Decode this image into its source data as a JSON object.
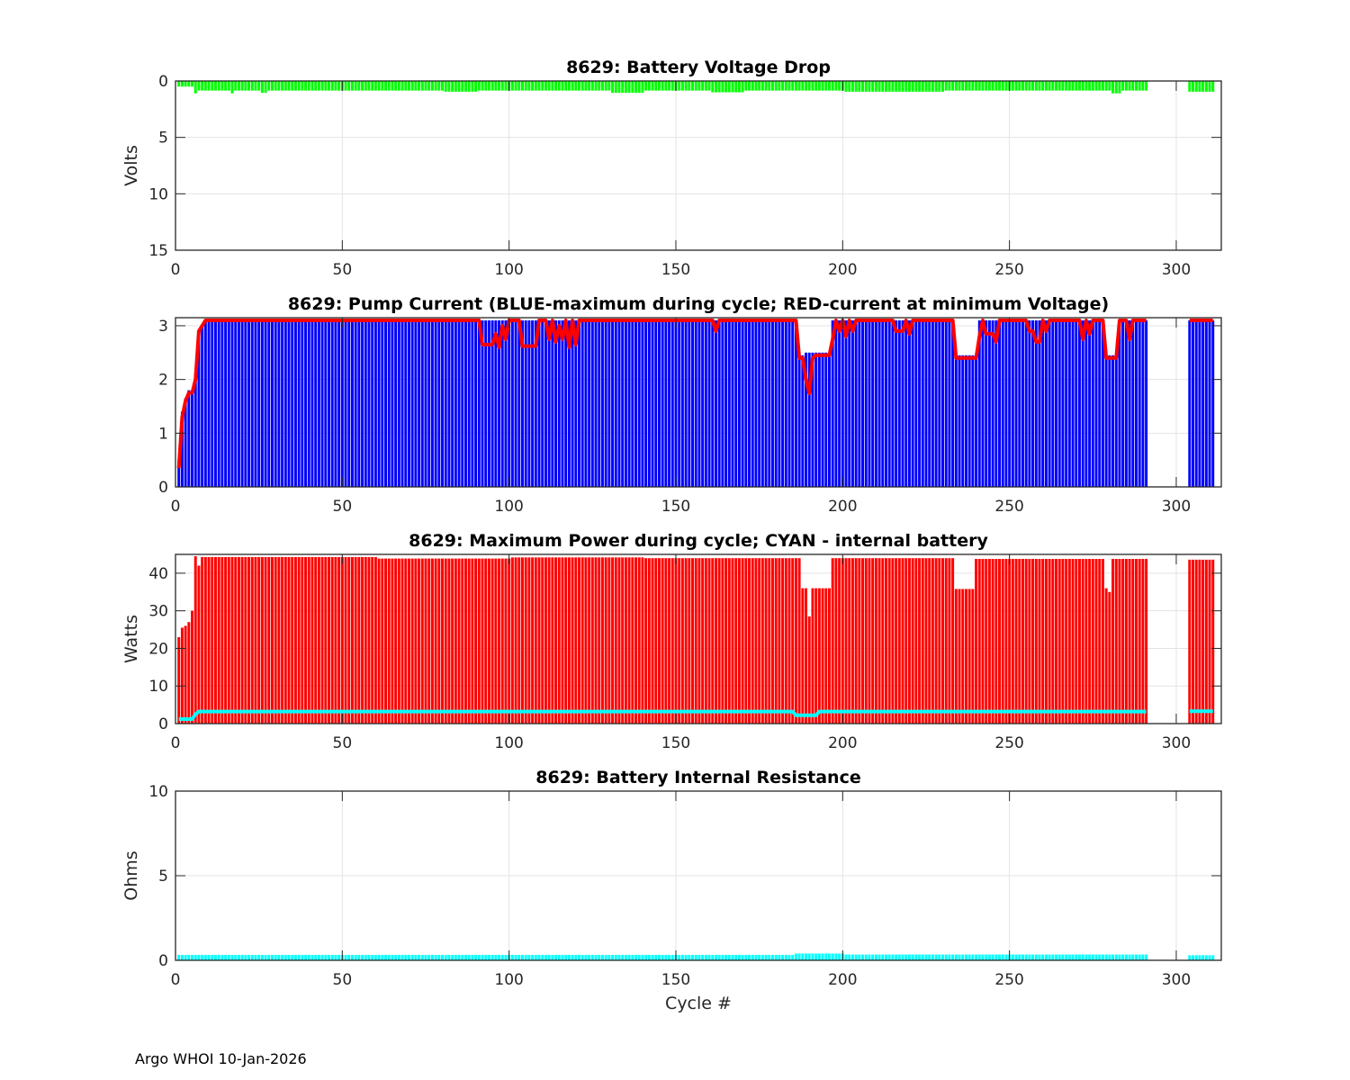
{
  "footer": "Argo WHOI 10-Jan-2026",
  "chart_data": [
    {
      "type": "bar",
      "title": "8629: Battery Voltage Drop",
      "xlabel": "",
      "ylabel": "Volts",
      "xlim": [
        0,
        313.5
      ],
      "ylim": [
        0,
        15
      ],
      "y_reversed": true,
      "xticks": [
        0,
        50,
        100,
        150,
        200,
        250,
        300
      ],
      "yticks": [
        0,
        5,
        10,
        15
      ],
      "grid": true,
      "series": [
        {
          "name": "voltage drop",
          "kind": "bar",
          "color": "#00ff00",
          "segments_note": "[first_cycle, last_cycle, value]",
          "segments": [
            [
              1,
              5,
              0.5
            ],
            [
              6,
              6,
              1.1
            ],
            [
              7,
              16,
              0.85
            ],
            [
              17,
              17,
              1.1
            ],
            [
              18,
              25,
              0.85
            ],
            [
              26,
              27,
              1.05
            ],
            [
              28,
              80,
              0.85
            ],
            [
              81,
              90,
              0.95
            ],
            [
              91,
              130,
              0.85
            ],
            [
              131,
              140,
              1.05
            ],
            [
              141,
              160,
              0.85
            ],
            [
              161,
              170,
              1.0
            ],
            [
              171,
              200,
              0.85
            ],
            [
              201,
              230,
              0.95
            ],
            [
              231,
              280,
              0.85
            ],
            [
              281,
              283,
              1.1
            ],
            [
              284,
              291,
              0.85
            ],
            [
              304,
              311,
              0.95
            ]
          ]
        }
      ]
    },
    {
      "type": "bar",
      "title": "8629: Pump Current (BLUE-maximum during cycle; RED-current at minimum Voltage)",
      "xlabel": "",
      "ylabel": "",
      "xlim": [
        0,
        313.5
      ],
      "ylim": [
        0,
        3.15
      ],
      "xticks": [
        0,
        50,
        100,
        150,
        200,
        250,
        300
      ],
      "yticks": [
        0,
        1,
        2,
        3
      ],
      "grid": true,
      "series": [
        {
          "name": "maximum during cycle",
          "kind": "bar",
          "color": "#0000ff",
          "segments": [
            [
              1,
              1,
              0.5
            ],
            [
              2,
              2,
              1.4
            ],
            [
              3,
              3,
              1.65
            ],
            [
              4,
              5,
              1.8
            ],
            [
              6,
              6,
              2.1
            ],
            [
              7,
              7,
              2.9
            ],
            [
              8,
              8,
              3.0
            ],
            [
              9,
              186,
              3.1
            ],
            [
              187,
              188,
              2.45
            ],
            [
              189,
              196,
              2.5
            ],
            [
              197,
              233,
              3.1
            ],
            [
              234,
              240,
              2.45
            ],
            [
              241,
              278,
              3.1
            ],
            [
              279,
              282,
              2.45
            ],
            [
              283,
              291,
              3.1
            ],
            [
              304,
              311,
              3.1
            ]
          ]
        },
        {
          "name": "current at minimum voltage",
          "kind": "line",
          "color": "#ff0000",
          "segments": [
            [
              1,
              1,
              0.35
            ],
            [
              2,
              2,
              1.3
            ],
            [
              3,
              3,
              1.6
            ],
            [
              4,
              5,
              1.75
            ],
            [
              6,
              6,
              2.0
            ],
            [
              7,
              7,
              2.9
            ],
            [
              8,
              8,
              3.0
            ],
            [
              9,
              91,
              3.1
            ],
            [
              92,
              95,
              2.65
            ],
            [
              96,
              96,
              2.85
            ],
            [
              97,
              97,
              2.6
            ],
            [
              98,
              98,
              3.0
            ],
            [
              99,
              99,
              2.75
            ],
            [
              100,
              103,
              3.1
            ],
            [
              104,
              108,
              2.62
            ],
            [
              109,
              111,
              3.1
            ],
            [
              112,
              112,
              2.75
            ],
            [
              113,
              113,
              3.1
            ],
            [
              114,
              114,
              2.7
            ],
            [
              115,
              115,
              3.0
            ],
            [
              116,
              116,
              2.75
            ],
            [
              117,
              117,
              3.1
            ],
            [
              118,
              118,
              2.6
            ],
            [
              119,
              119,
              3.1
            ],
            [
              120,
              120,
              2.65
            ],
            [
              121,
              161,
              3.1
            ],
            [
              162,
              162,
              2.9
            ],
            [
              163,
              186,
              3.1
            ],
            [
              187,
              188,
              2.4
            ],
            [
              189,
              189,
              2.0
            ],
            [
              190,
              190,
              1.74
            ],
            [
              191,
              191,
              2.4
            ],
            [
              192,
              196,
              2.45
            ],
            [
              197,
              197,
              2.75
            ],
            [
              198,
              198,
              3.1
            ],
            [
              199,
              199,
              2.9
            ],
            [
              200,
              200,
              3.1
            ],
            [
              201,
              201,
              2.8
            ],
            [
              202,
              202,
              3.1
            ],
            [
              203,
              203,
              2.9
            ],
            [
              204,
              215,
              3.1
            ],
            [
              216,
              218,
              2.9
            ],
            [
              219,
              219,
              3.1
            ],
            [
              220,
              220,
              2.85
            ],
            [
              221,
              233,
              3.1
            ],
            [
              234,
              240,
              2.4
            ],
            [
              241,
              241,
              2.8
            ],
            [
              242,
              242,
              3.1
            ],
            [
              243,
              245,
              2.85
            ],
            [
              246,
              246,
              2.7
            ],
            [
              247,
              255,
              3.1
            ],
            [
              256,
              257,
              2.9
            ],
            [
              258,
              259,
              2.7
            ],
            [
              260,
              260,
              3.1
            ],
            [
              261,
              261,
              2.9
            ],
            [
              262,
              271,
              3.1
            ],
            [
              272,
              272,
              2.75
            ],
            [
              273,
              273,
              3.1
            ],
            [
              274,
              274,
              2.85
            ],
            [
              275,
              278,
              3.1
            ],
            [
              279,
              282,
              2.4
            ],
            [
              283,
              285,
              3.1
            ],
            [
              286,
              286,
              2.75
            ],
            [
              287,
              291,
              3.1
            ],
            [
              304,
              311,
              3.1
            ]
          ]
        }
      ]
    },
    {
      "type": "bar",
      "title": "8629: Maximum Power during cycle; CYAN - internal battery",
      "xlabel": "",
      "ylabel": "Watts",
      "xlim": [
        0,
        313.5
      ],
      "ylim": [
        0,
        45
      ],
      "xticks": [
        0,
        50,
        100,
        150,
        200,
        250,
        300
      ],
      "yticks": [
        0,
        10,
        20,
        30,
        40
      ],
      "grid": true,
      "series": [
        {
          "name": "maximum power",
          "kind": "bar",
          "color": "#ff0000",
          "segments": [
            [
              1,
              1,
              23
            ],
            [
              2,
              2,
              25.5
            ],
            [
              3,
              3,
              26
            ],
            [
              4,
              4,
              27
            ],
            [
              5,
              5,
              30
            ],
            [
              6,
              6,
              44.5
            ],
            [
              7,
              7,
              42
            ],
            [
              8,
              60,
              44.3
            ],
            [
              61,
              100,
              43.9
            ],
            [
              101,
              140,
              44.2
            ],
            [
              141,
              187,
              44.0
            ],
            [
              188,
              189,
              36
            ],
            [
              190,
              190,
              28.5
            ],
            [
              191,
              196,
              36
            ],
            [
              197,
              233,
              44
            ],
            [
              234,
              239,
              35.8
            ],
            [
              240,
              278,
              43.8
            ],
            [
              279,
              279,
              36
            ],
            [
              280,
              280,
              35
            ],
            [
              281,
              291,
              43.8
            ],
            [
              304,
              311,
              43.6
            ]
          ]
        },
        {
          "name": "internal battery",
          "kind": "line",
          "color": "#00ffff",
          "segments": [
            [
              1,
              5,
              1.2
            ],
            [
              6,
              6,
              2.5
            ],
            [
              7,
              185,
              3.2
            ],
            [
              186,
              192,
              2.2
            ],
            [
              193,
              291,
              3.2
            ],
            [
              304,
              311,
              3.3
            ]
          ]
        }
      ]
    },
    {
      "type": "bar",
      "title": "8629: Battery Internal Resistance",
      "xlabel": "Cycle #",
      "ylabel": "Ohms",
      "xlim": [
        0,
        313.5
      ],
      "ylim": [
        0,
        10
      ],
      "xticks": [
        0,
        50,
        100,
        150,
        200,
        250,
        300
      ],
      "yticks": [
        0,
        5,
        10
      ],
      "grid": true,
      "series": [
        {
          "name": "internal resistance",
          "kind": "bar",
          "color": "#00ffff",
          "segments": [
            [
              1,
              185,
              0.32
            ],
            [
              186,
              200,
              0.4
            ],
            [
              201,
              291,
              0.34
            ],
            [
              304,
              311,
              0.3
            ]
          ]
        }
      ]
    }
  ]
}
